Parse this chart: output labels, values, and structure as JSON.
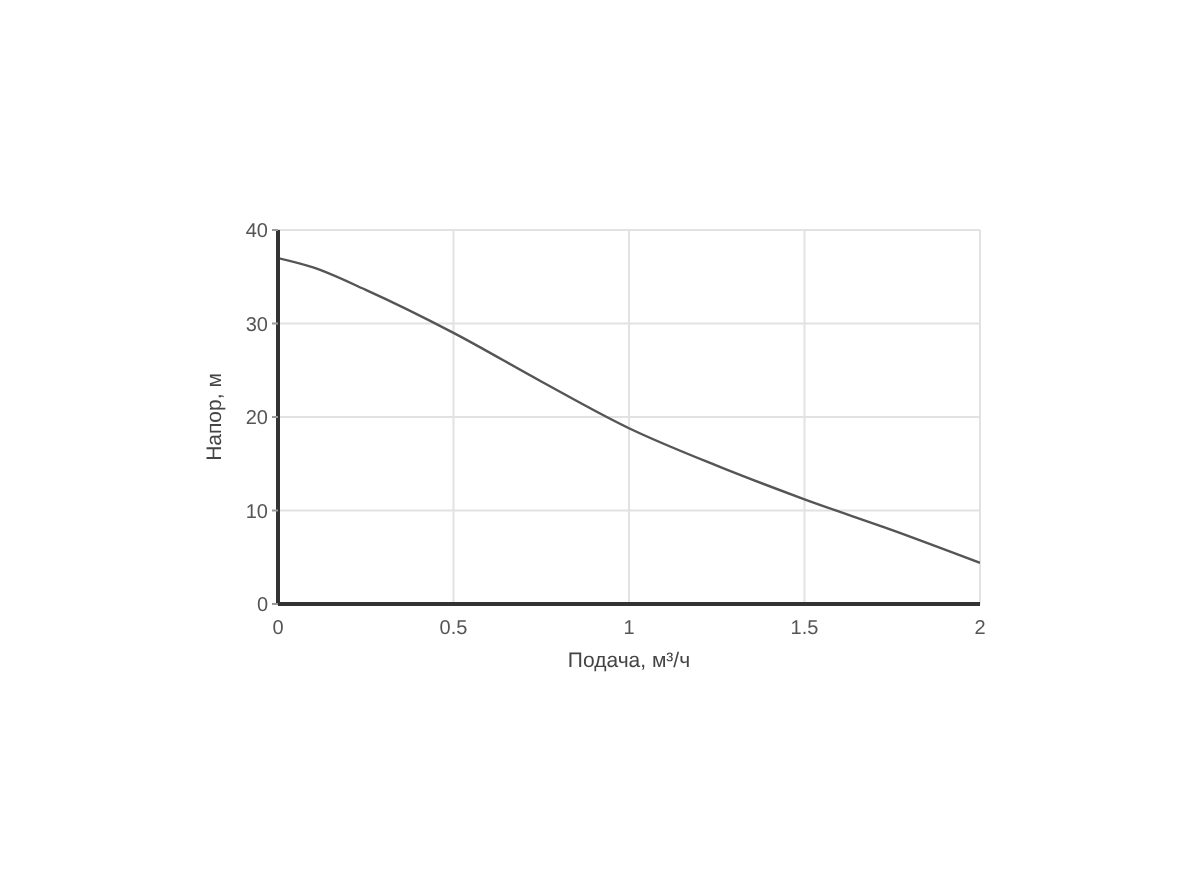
{
  "chart_data": {
    "type": "line",
    "xlabel": "Подача, м³/ч",
    "ylabel": "Напор, м",
    "x": [
      0,
      0.1,
      0.25,
      0.5,
      0.75,
      1,
      1.25,
      1.5,
      1.75,
      2
    ],
    "series": [
      {
        "color": "#555555",
        "values": [
          37,
          36,
          33.6,
          29,
          23.8,
          18.8,
          14.8,
          11.2,
          7.9,
          4.4
        ]
      }
    ],
    "xlim": [
      0,
      2
    ],
    "ylim": [
      0,
      40
    ],
    "xticks": [
      0,
      0.5,
      1,
      1.5,
      2
    ],
    "yticks": [
      0,
      10,
      20,
      30,
      40
    ],
    "grid": true,
    "line_style": "solid"
  }
}
